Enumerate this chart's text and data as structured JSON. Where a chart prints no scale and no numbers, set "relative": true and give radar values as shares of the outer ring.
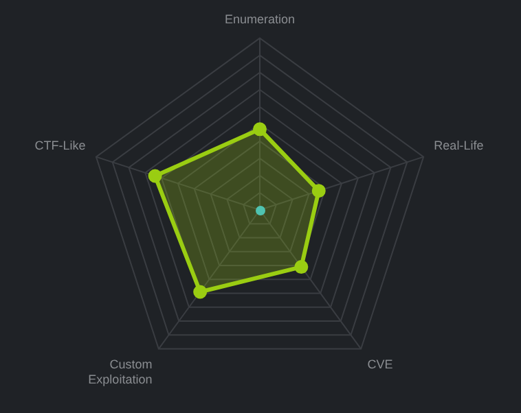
{
  "chart_data": {
    "type": "radar",
    "relative": true,
    "categories": [
      "Enumeration",
      "Real-Life",
      "CVE",
      "Custom Exploitation",
      "CTF-Like"
    ],
    "series": [
      {
        "color": "#9acd12",
        "values": [
          0.47,
          0.36,
          0.41,
          0.59,
          0.64
        ]
      }
    ],
    "legend": false,
    "grid": true
  }
}
